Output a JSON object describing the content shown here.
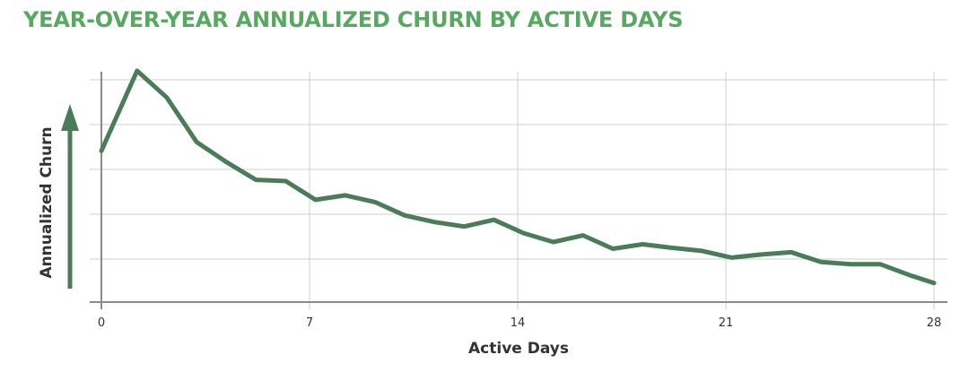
{
  "chart_data": {
    "type": "line",
    "title": "YEAR-OVER-YEAR ANNUALIZED CHURN BY ACTIVE DAYS",
    "xlabel": "Active Days",
    "ylabel": "Annualized Churn",
    "xticks": [
      0,
      7,
      14,
      21,
      28
    ],
    "xlim": [
      0,
      28
    ],
    "ylim": [
      0,
      5.2
    ],
    "y_tick_labels_shown": false,
    "grid": true,
    "series": [
      {
        "color": "#4a7c59",
        "x": [
          0,
          1.2,
          2.2,
          3.2,
          4.2,
          5.2,
          6.2,
          7.2,
          8.2,
          9.2,
          10.2,
          11.2,
          12.2,
          13.2,
          14.2,
          15.2,
          16.2,
          17.2,
          18.2,
          19.2,
          20.2,
          21.2,
          22.2,
          23.2,
          24.2,
          25.2,
          26.2,
          27.2,
          28
        ],
        "values": [
          3.4,
          5.2,
          4.6,
          3.6,
          3.15,
          2.75,
          2.72,
          2.3,
          2.4,
          2.25,
          1.95,
          1.8,
          1.7,
          1.85,
          1.55,
          1.35,
          1.5,
          1.2,
          1.3,
          1.22,
          1.15,
          1.0,
          1.07,
          1.12,
          0.9,
          0.85,
          0.85,
          0.6,
          0.43
        ]
      }
    ],
    "arrow_color": "#4a7c59"
  }
}
